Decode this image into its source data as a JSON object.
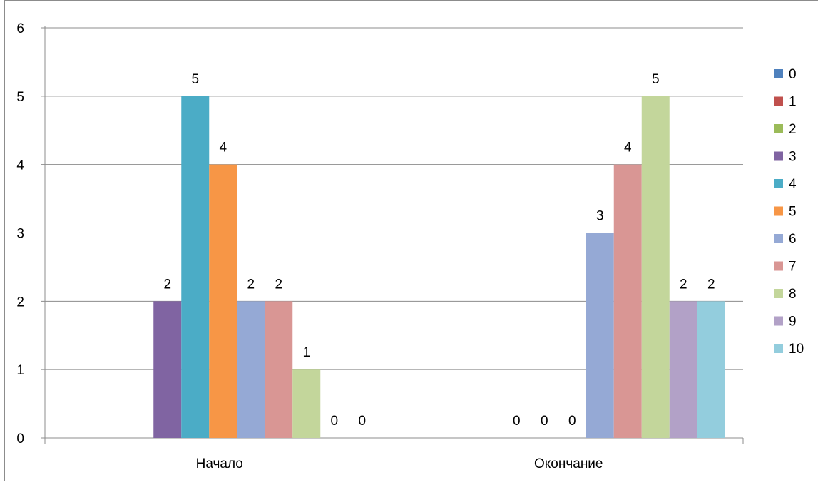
{
  "chart_data": {
    "type": "bar",
    "categories": [
      "Начало",
      "Окончание"
    ],
    "ylim": [
      0,
      6
    ],
    "yticks": [
      0,
      1,
      2,
      3,
      4,
      5,
      6
    ],
    "grid": true,
    "legend_position": "right",
    "series": [
      {
        "name": "0",
        "color": "#4F81BD",
        "values": [
          null,
          null
        ]
      },
      {
        "name": "1",
        "color": "#C0504D",
        "values": [
          null,
          null
        ]
      },
      {
        "name": "2",
        "color": "#9BBB59",
        "values": [
          null,
          null
        ]
      },
      {
        "name": "3",
        "color": "#8064A2",
        "values": [
          2,
          0
        ]
      },
      {
        "name": "4",
        "color": "#4BACC6",
        "values": [
          5,
          0
        ]
      },
      {
        "name": "5",
        "color": "#F79646",
        "values": [
          4,
          0
        ]
      },
      {
        "name": "6",
        "color": "#95A9D5",
        "values": [
          2,
          3
        ]
      },
      {
        "name": "7",
        "color": "#D99694",
        "values": [
          2,
          4
        ]
      },
      {
        "name": "8",
        "color": "#C3D69B",
        "values": [
          1,
          5
        ]
      },
      {
        "name": "9",
        "color": "#B2A1C7",
        "values": [
          0,
          2
        ]
      },
      {
        "name": "10",
        "color": "#93CDDD",
        "values": [
          0,
          2
        ]
      }
    ]
  }
}
